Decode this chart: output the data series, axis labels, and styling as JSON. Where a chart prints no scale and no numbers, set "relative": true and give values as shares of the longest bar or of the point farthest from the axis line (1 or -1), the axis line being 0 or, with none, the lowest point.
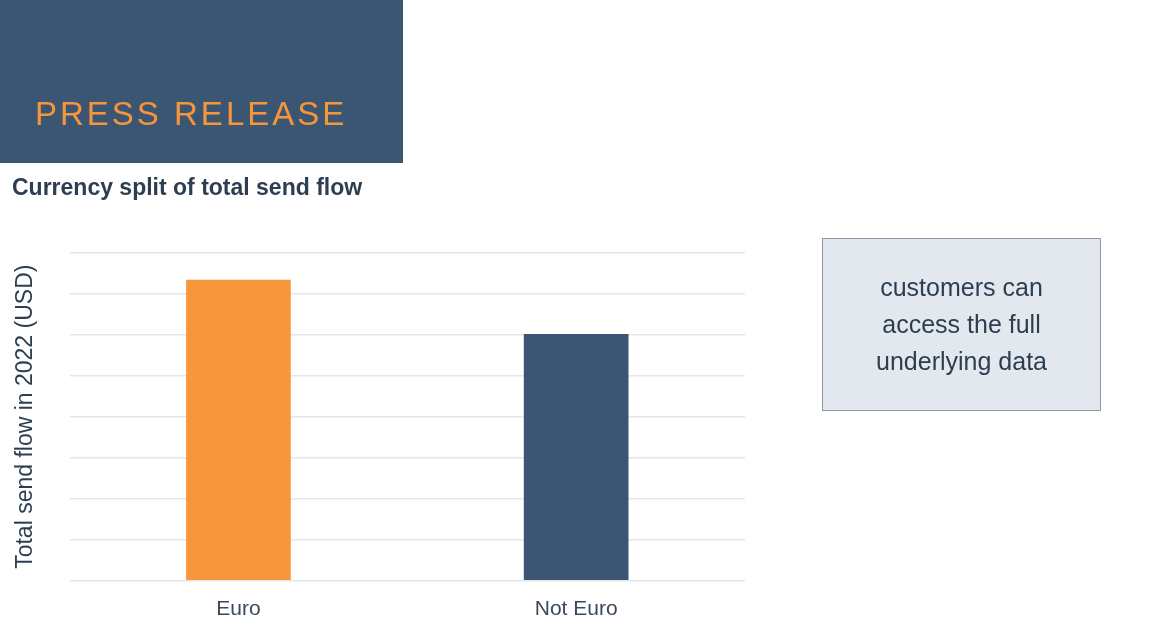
{
  "chart_data": {
    "type": "bar",
    "title": "Currency split of total send flow",
    "ylabel": "Total send flow in 2022 (USD)",
    "categories": [
      "Euro",
      "Not Euro"
    ],
    "values": [
      1,
      0.82
    ],
    "colors": [
      "#f7973d",
      "#3a5672"
    ],
    "relative": true,
    "grid": "y",
    "annotations": [
      "PRESS RELEASE",
      "customers can access the full underlying data"
    ]
  }
}
